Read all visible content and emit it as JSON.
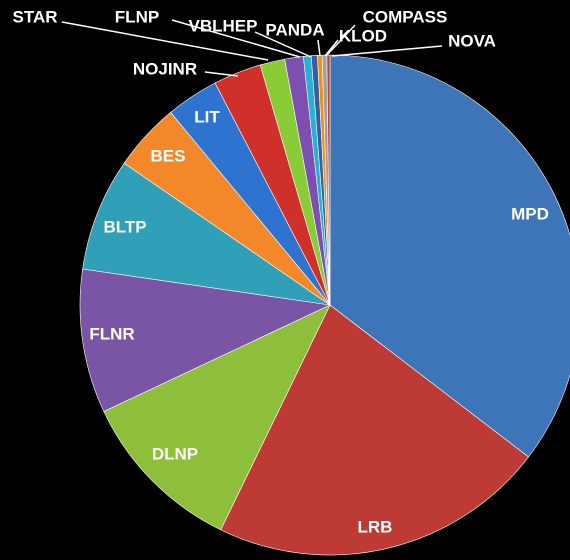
{
  "chart_data": {
    "type": "pie",
    "categories": [
      "MPD",
      "LRB",
      "DLNP",
      "FLNR",
      "BLTP",
      "BES",
      "LIT",
      "NOJINR",
      "STAR",
      "FLNP",
      "VBLHEP",
      "PANDA",
      "KLOD",
      "COMPASS",
      "NOVA"
    ],
    "values": [
      35.4,
      21.8,
      10.8,
      9.3,
      7.3,
      4.4,
      3.4,
      3.1,
      1.6,
      1.2,
      0.5,
      0.4,
      0.3,
      0.3,
      0.2
    ],
    "colors": [
      "#3e74b8",
      "#be3a34",
      "#8dbf3b",
      "#7a55a6",
      "#2fa0b8",
      "#f2882a",
      "#2f73d0",
      "#d0302a",
      "#8acb38",
      "#7d4fb0",
      "#2ab0d4",
      "#3560a0",
      "#f09020",
      "#a0a0a0",
      "#c04030"
    ]
  }
}
